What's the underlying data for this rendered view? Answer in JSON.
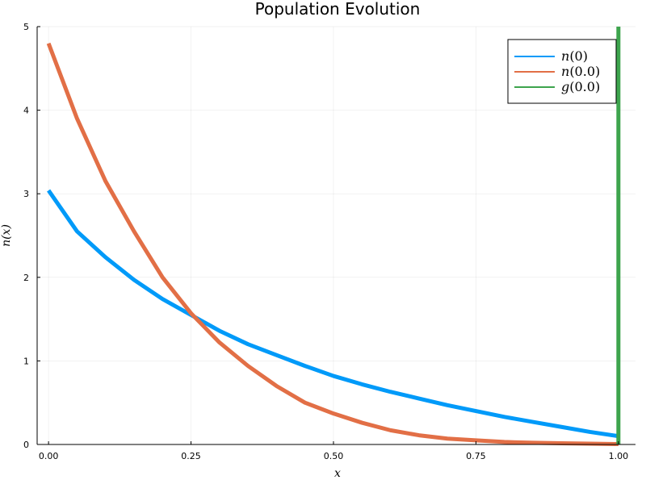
{
  "chart_data": {
    "type": "line",
    "title": "Population Evolution",
    "xlabel": "x",
    "ylabel": "n(x)",
    "xlim": [
      -0.02,
      1.03
    ],
    "ylim": [
      0,
      5
    ],
    "x_ticks": [
      0.0,
      0.25,
      0.5,
      0.75,
      1.0
    ],
    "x_tick_labels": [
      "0.00",
      "0.25",
      "0.50",
      "0.75",
      "1.00"
    ],
    "y_ticks": [
      0,
      1,
      2,
      3,
      4,
      5
    ],
    "y_tick_labels": [
      "0",
      "1",
      "2",
      "3",
      "4",
      "5"
    ],
    "grid": true,
    "legend_position": "top-right",
    "series": [
      {
        "name": "n(0)",
        "name_italic": "n",
        "name_arg": "(0)",
        "color": "#009af9",
        "x": [
          0.0,
          0.05,
          0.1,
          0.15,
          0.2,
          0.25,
          0.3,
          0.35,
          0.4,
          0.45,
          0.5,
          0.55,
          0.6,
          0.65,
          0.7,
          0.75,
          0.8,
          0.85,
          0.9,
          0.95,
          1.0
        ],
        "y": [
          3.04,
          2.55,
          2.24,
          1.97,
          1.74,
          1.55,
          1.36,
          1.2,
          1.07,
          0.94,
          0.82,
          0.72,
          0.63,
          0.55,
          0.47,
          0.4,
          0.33,
          0.27,
          0.21,
          0.15,
          0.1
        ]
      },
      {
        "name": "n(0.0)",
        "name_italic": "n",
        "name_arg": "(0.0)",
        "color": "#e26f46",
        "x": [
          0.0,
          0.05,
          0.1,
          0.15,
          0.2,
          0.25,
          0.3,
          0.35,
          0.4,
          0.45,
          0.5,
          0.55,
          0.6,
          0.65,
          0.7,
          0.75,
          0.8,
          0.85,
          0.9,
          0.95,
          1.0
        ],
        "y": [
          4.8,
          3.9,
          3.15,
          2.55,
          2.0,
          1.57,
          1.22,
          0.94,
          0.7,
          0.5,
          0.37,
          0.26,
          0.17,
          0.11,
          0.07,
          0.05,
          0.03,
          0.02,
          0.015,
          0.01,
          0.005
        ]
      },
      {
        "name": "g(0.0)",
        "name_italic": "g",
        "name_arg": "(0.0)",
        "color": "#3da44d",
        "x": [
          1.0,
          1.0
        ],
        "y": [
          0,
          5
        ]
      }
    ]
  }
}
